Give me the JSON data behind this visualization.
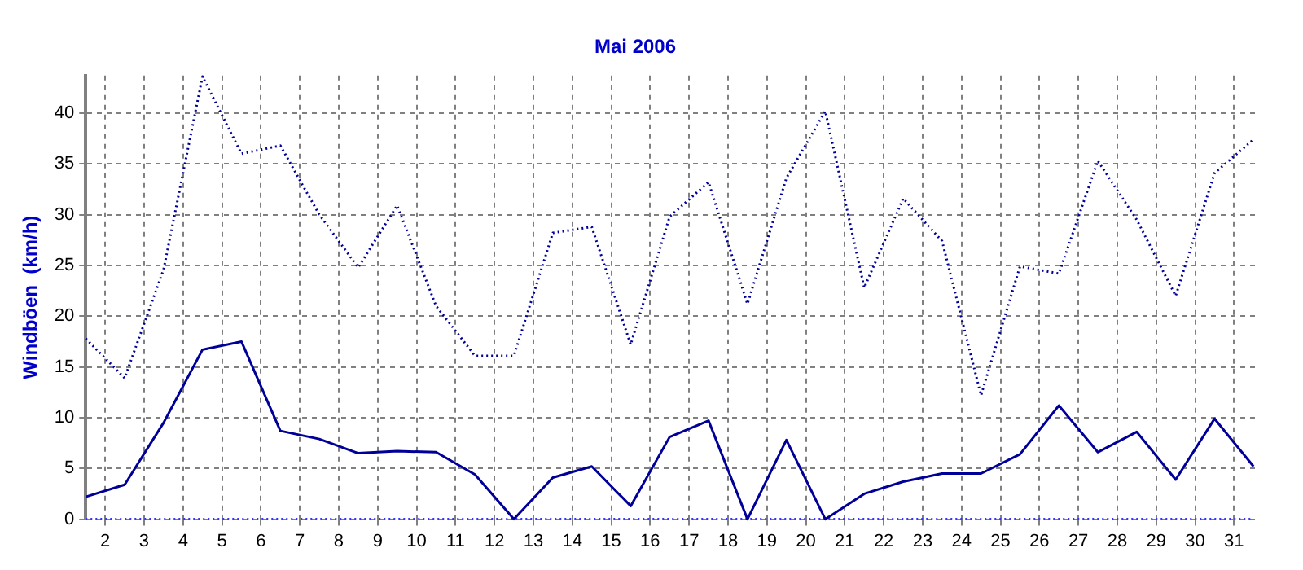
{
  "chart_data": {
    "type": "line",
    "title": "Mai 2006",
    "ylabel": "Windböen  (km/h)",
    "x": [
      1.5,
      2.5,
      3.5,
      4.5,
      5.5,
      6.5,
      7.5,
      8.5,
      9.5,
      10.5,
      11.5,
      12.5,
      13.5,
      14.5,
      15.5,
      16.5,
      17.5,
      18.5,
      19.5,
      20.5,
      21.5,
      22.5,
      23.5,
      24.5,
      25.5,
      26.5,
      27.5,
      28.5,
      29.5,
      30.5,
      31.5
    ],
    "series": [
      {
        "color": "#000099",
        "line_style": "dotted",
        "values": [
          17.8,
          13.9,
          24.6,
          43.6,
          36,
          36.8,
          30,
          24.8,
          30.9,
          21,
          16.1,
          16.1,
          28.2,
          28.8,
          17.2,
          29.8,
          33.2,
          21.2,
          33.6,
          40.2,
          22.8,
          31.6,
          27.4,
          12.2,
          24.9,
          24.2,
          35.3,
          29.5,
          22,
          34.1,
          37.4
        ]
      },
      {
        "color": "#000099",
        "line_style": "solid",
        "values": [
          2.2,
          3.4,
          9.5,
          16.7,
          17.5,
          8.7,
          7.9,
          6.5,
          6.7,
          6.6,
          4.4,
          0,
          4.1,
          5.2,
          1.3,
          8.1,
          9.7,
          0,
          7.8,
          0,
          2.5,
          3.7,
          4.5,
          4.5,
          6.4,
          11.2,
          6.6,
          8.6,
          3.9,
          9.9,
          5.2
        ]
      },
      {
        "color": "#3333ff",
        "line_style": "dotted",
        "values": [
          0,
          0,
          0,
          0,
          0,
          0,
          0,
          0,
          0,
          0,
          0,
          0,
          0,
          0,
          0,
          0,
          0,
          0,
          0,
          0,
          0,
          0,
          0,
          0,
          0,
          0,
          0,
          0,
          0,
          0,
          0
        ]
      }
    ],
    "xlim": [
      1.5,
      31.6
    ],
    "xticks": [
      2,
      3,
      4,
      5,
      6,
      7,
      8,
      9,
      10,
      11,
      12,
      13,
      14,
      15,
      16,
      17,
      18,
      19,
      20,
      21,
      22,
      23,
      24,
      25,
      26,
      27,
      28,
      29,
      30,
      31
    ],
    "ylim": [
      0,
      43.7
    ],
    "yticks": [
      0,
      5,
      10,
      15,
      20,
      25,
      30,
      35,
      40
    ],
    "grid": true,
    "legend": false,
    "marker": "none"
  }
}
